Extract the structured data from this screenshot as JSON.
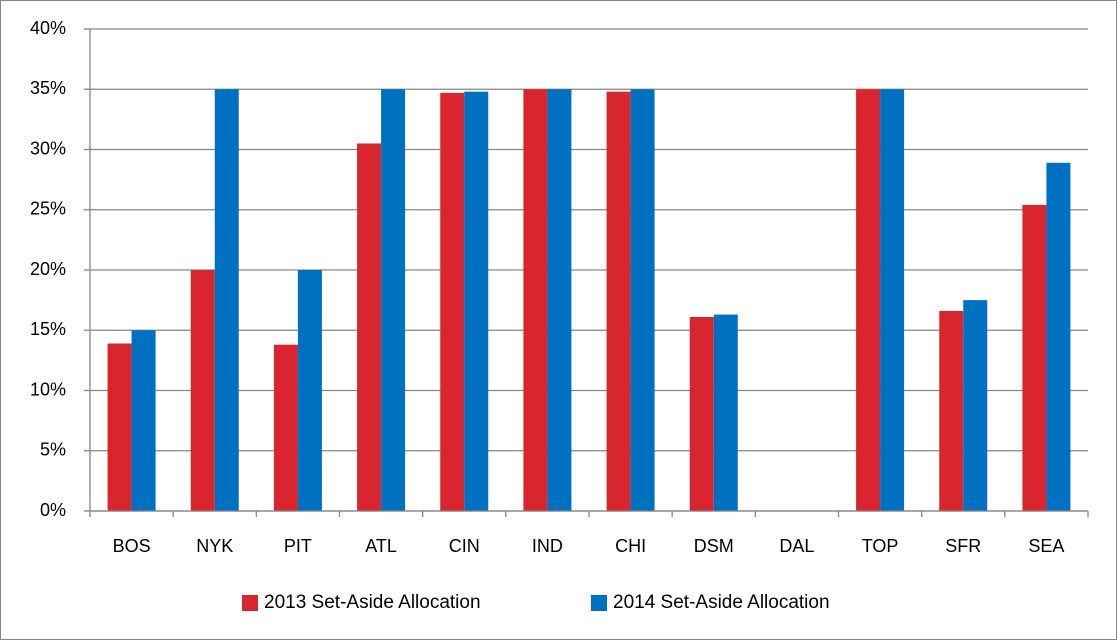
{
  "chart_data": {
    "type": "bar",
    "categories": [
      "BOS",
      "NYK",
      "PIT",
      "ATL",
      "CIN",
      "IND",
      "CHI",
      "DSM",
      "DAL",
      "TOP",
      "SFR",
      "SEA"
    ],
    "series": [
      {
        "name": "2013 Set-Aside Allocation",
        "color": "#d9262e",
        "values": [
          13.9,
          20.0,
          13.8,
          30.5,
          34.7,
          35.0,
          34.8,
          16.1,
          0,
          35.0,
          16.6,
          25.4
        ]
      },
      {
        "name": "2014 Set-Aside Allocation",
        "color": "#0070c0",
        "values": [
          15.0,
          35.0,
          20.0,
          35.0,
          34.8,
          35.0,
          35.0,
          16.3,
          0,
          35.0,
          17.5,
          28.9
        ]
      }
    ],
    "ylim": [
      0,
      40
    ],
    "yticks": [
      {
        "value": 0,
        "label": "0%"
      },
      {
        "value": 5,
        "label": "5%"
      },
      {
        "value": 10,
        "label": "10%"
      },
      {
        "value": 15,
        "label": "15%"
      },
      {
        "value": 20,
        "label": "20%"
      },
      {
        "value": 25,
        "label": "25%"
      },
      {
        "value": 30,
        "label": "30%"
      },
      {
        "value": 35,
        "label": "35%"
      },
      {
        "value": 40,
        "label": "40%"
      }
    ],
    "grid": true,
    "legend": "bottom"
  }
}
